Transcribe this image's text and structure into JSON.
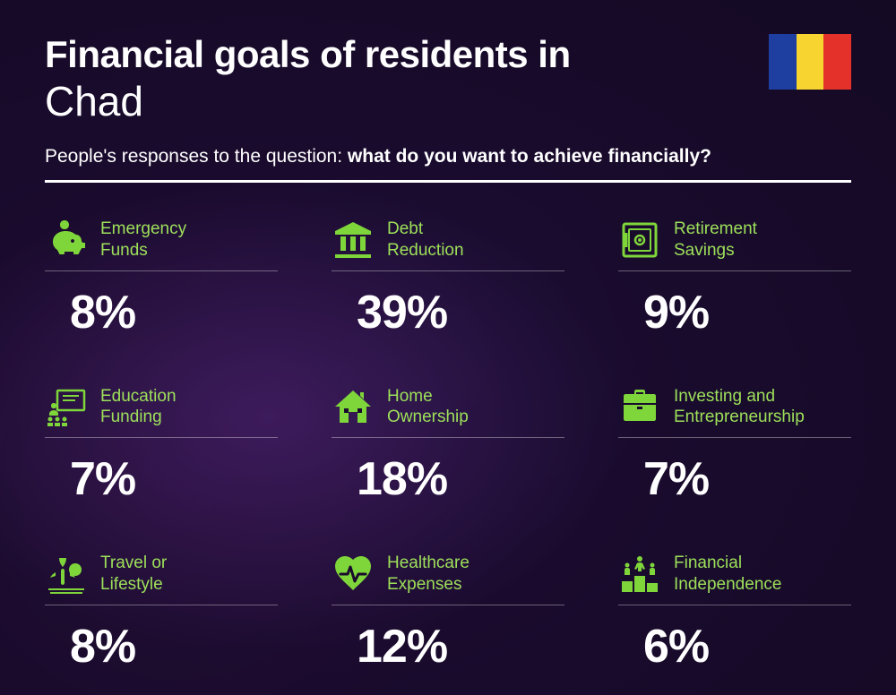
{
  "header": {
    "title_prefix": "Financial goals of residents in",
    "country": "Chad",
    "subtitle_prefix": "People's responses to the question: ",
    "subtitle_bold": "what do you want to achieve financially?"
  },
  "flag": {
    "stripes": [
      "#1f3fa0",
      "#f8d430",
      "#e4312a"
    ]
  },
  "accent_color": "#7fd63a",
  "label_color": "#9de05a",
  "text_color": "#ffffff",
  "items": [
    {
      "label_l1": "Emergency",
      "label_l2": "Funds",
      "value": "8%",
      "icon": "piggy"
    },
    {
      "label_l1": "Debt",
      "label_l2": "Reduction",
      "value": "39%",
      "icon": "bank"
    },
    {
      "label_l1": "Retirement",
      "label_l2": "Savings",
      "value": "9%",
      "icon": "safe"
    },
    {
      "label_l1": "Education",
      "label_l2": "Funding",
      "value": "7%",
      "icon": "education"
    },
    {
      "label_l1": "Home",
      "label_l2": "Ownership",
      "value": "18%",
      "icon": "home"
    },
    {
      "label_l1": "Investing and",
      "label_l2": "Entrepreneurship",
      "value": "7%",
      "icon": "briefcase"
    },
    {
      "label_l1": "Travel or",
      "label_l2": "Lifestyle",
      "value": "8%",
      "icon": "travel"
    },
    {
      "label_l1": "Healthcare",
      "label_l2": "Expenses",
      "value": "12%",
      "icon": "health"
    },
    {
      "label_l1": "Financial",
      "label_l2": "Independence",
      "value": "6%",
      "icon": "podium"
    }
  ]
}
